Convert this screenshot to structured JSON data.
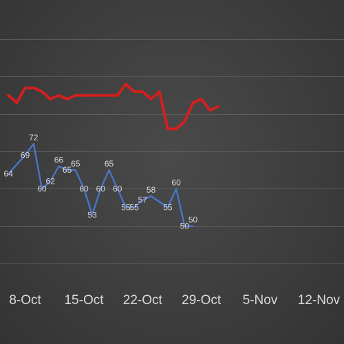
{
  "chart_data": {
    "type": "line",
    "title": "",
    "xlabel": "",
    "ylabel": "",
    "x_axis": {
      "type": "date",
      "ticks": [
        "8-Oct",
        "15-Oct",
        "22-Oct",
        "29-Oct",
        "5-Nov",
        "12-Nov"
      ],
      "range": [
        "2018-10-05",
        "2018-11-15"
      ]
    },
    "y_axis": {
      "range": [
        35,
        105
      ],
      "gridlines": [
        40,
        50,
        60,
        70,
        80,
        90,
        100
      ]
    },
    "grid": true,
    "legend": "none",
    "series": [
      {
        "color": "#d21f1f",
        "show_labels": false,
        "points": [
          [
            "2018-10-06",
            85
          ],
          [
            "2018-10-07",
            83
          ],
          [
            "2018-10-08",
            87
          ],
          [
            "2018-10-09",
            87
          ],
          [
            "2018-10-10",
            86
          ],
          [
            "2018-10-11",
            84
          ],
          [
            "2018-10-12",
            85
          ],
          [
            "2018-10-13",
            84
          ],
          [
            "2018-10-14",
            85
          ],
          [
            "2018-10-15",
            85
          ],
          [
            "2018-10-16",
            85
          ],
          [
            "2018-10-17",
            85
          ],
          [
            "2018-10-18",
            85
          ],
          [
            "2018-10-19",
            85
          ],
          [
            "2018-10-20",
            88
          ],
          [
            "2018-10-21",
            86
          ],
          [
            "2018-10-22",
            86
          ],
          [
            "2018-10-23",
            84
          ],
          [
            "2018-10-24",
            86
          ],
          [
            "2018-10-25",
            76
          ],
          [
            "2018-10-26",
            76
          ],
          [
            "2018-10-27",
            78
          ],
          [
            "2018-10-28",
            83
          ],
          [
            "2018-10-29",
            84
          ],
          [
            "2018-10-30",
            81
          ],
          [
            "2018-10-31",
            82
          ]
        ]
      },
      {
        "color": "#4a72c4",
        "show_labels": true,
        "points": [
          [
            "2018-10-06",
            64
          ],
          [
            "2018-10-08",
            69
          ],
          [
            "2018-10-09",
            72
          ],
          [
            "2018-10-10",
            60
          ],
          [
            "2018-10-11",
            62
          ],
          [
            "2018-10-12",
            66
          ],
          [
            "2018-10-13",
            65
          ],
          [
            "2018-10-14",
            65
          ],
          [
            "2018-10-15",
            60
          ],
          [
            "2018-10-16",
            53
          ],
          [
            "2018-10-17",
            60
          ],
          [
            "2018-10-18",
            65
          ],
          [
            "2018-10-19",
            60
          ],
          [
            "2018-10-20",
            55
          ],
          [
            "2018-10-21",
            55
          ],
          [
            "2018-10-22",
            57
          ],
          [
            "2018-10-23",
            58
          ],
          [
            "2018-10-25",
            55
          ],
          [
            "2018-10-26",
            60
          ],
          [
            "2018-10-27",
            50
          ],
          [
            "2018-10-28",
            50
          ]
        ]
      }
    ]
  }
}
